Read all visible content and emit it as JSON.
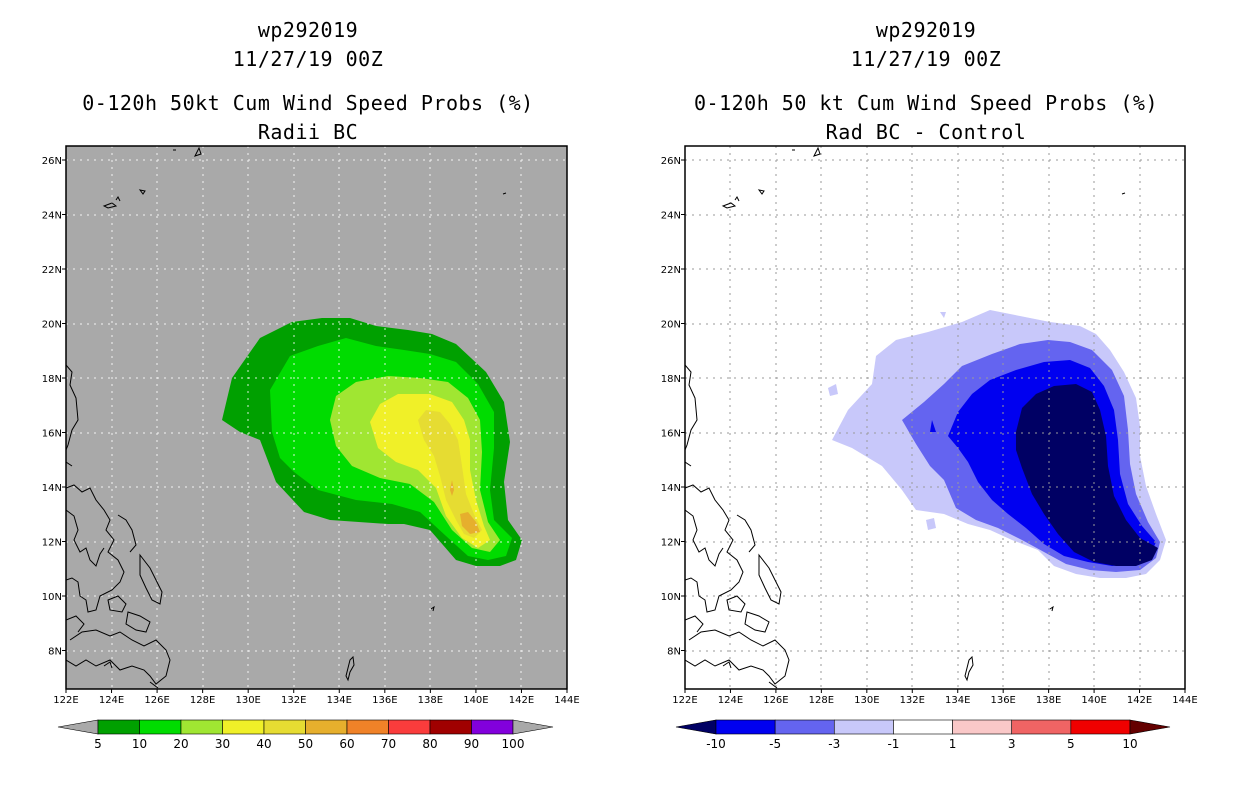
{
  "left_panel": {
    "storm_id": "wp292019",
    "datetime": "11/27/19 00Z",
    "product": "0-120h 50kt Cum Wind Speed Probs (%)",
    "subtitle": "Radii BC",
    "background_color": "#a9a9a9",
    "colorbar": {
      "labels": [
        "5",
        "10",
        "20",
        "30",
        "40",
        "50",
        "60",
        "70",
        "80",
        "90",
        "100"
      ],
      "colors": [
        "#a9a9a9",
        "#00a000",
        "#00dc00",
        "#a0e632",
        "#f0f028",
        "#e6dc32",
        "#e6af2d",
        "#f08228",
        "#fa3c3c",
        "#a00000",
        "#8200dc",
        "#a9a9a9"
      ]
    }
  },
  "right_panel": {
    "storm_id": "wp292019",
    "datetime": "11/27/19 00Z",
    "product": "0-120h 50 kt Cum Wind Speed Probs (%)",
    "subtitle": "Rad BC - Control",
    "background_color": "#ffffff",
    "colorbar": {
      "labels": [
        "-10",
        "-5",
        "-3",
        "-1",
        "1",
        "3",
        "5",
        "10"
      ],
      "colors": [
        "#000064",
        "#0000f0",
        "#6464f0",
        "#c8c8fa",
        "#ffffff",
        "#fac8c8",
        "#f06464",
        "#f00000",
        "#640000"
      ]
    }
  },
  "map": {
    "lon_labels": [
      "122E",
      "124E",
      "126E",
      "128E",
      "130E",
      "132E",
      "134E",
      "136E",
      "138E",
      "140E",
      "142E",
      "144E"
    ],
    "lat_labels": [
      "26N",
      "24N",
      "22N",
      "20N",
      "18N",
      "16N",
      "14N",
      "12N",
      "10N",
      "8N"
    ]
  }
}
